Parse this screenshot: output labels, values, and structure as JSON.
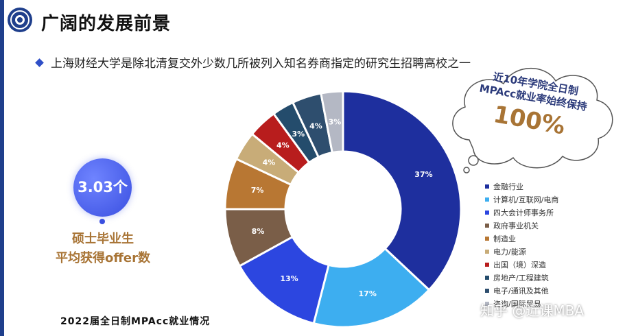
{
  "header": {
    "title": "广阔的发展前景",
    "subtitle": "上海财经大学是除北清复交外少数几所被列入知名券商指定的研究生招聘高校之一"
  },
  "cloud": {
    "line1": "近10年学院全日制",
    "line2": "MPAcc就业率始终保持",
    "value": "100%"
  },
  "badge": {
    "value": "3.03个",
    "caption_line1": "硕士毕业生",
    "caption_line2": "平均获得offer数"
  },
  "footer": {
    "text": "2022届全日制MPAcc就业情况"
  },
  "watermark": {
    "text": "知乎 @近课MBA"
  },
  "chart_data": {
    "type": "pie",
    "donut": true,
    "title": "",
    "legend_position": "right",
    "slices": [
      {
        "name": "金融行业",
        "value": 37,
        "label": "37%",
        "color": "#1e2f9e"
      },
      {
        "name": "计算机/互联网/电商",
        "value": 17,
        "label": "17%",
        "color": "#3daef0"
      },
      {
        "name": "四大会计师事务所",
        "value": 13,
        "label": "13%",
        "color": "#2c46e0"
      },
      {
        "name": "政府事业机关",
        "value": 8,
        "label": "8%",
        "color": "#7a5e48"
      },
      {
        "name": "制造业",
        "value": 7,
        "label": "7%",
        "color": "#b87733"
      },
      {
        "name": "电力/能源",
        "value": 4,
        "label": "4%",
        "color": "#c8ac78"
      },
      {
        "name": "出国（境）深造",
        "value": 4,
        "label": "4%",
        "color": "#b81d1d"
      },
      {
        "name": "房地产/工程建筑",
        "value": 3,
        "label": "3%",
        "color": "#244c6c"
      },
      {
        "name": "电子/通讯及其他",
        "value": 4,
        "label": "4%",
        "color": "#2e4e6e"
      },
      {
        "name": "咨询/国际贸易",
        "value": 3,
        "label": "3%",
        "color": "#b4b8c4"
      }
    ]
  }
}
